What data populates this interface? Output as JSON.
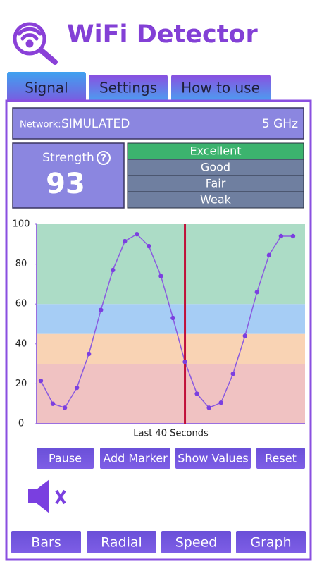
{
  "header": {
    "title": "WiFi Detector"
  },
  "tabs": [
    "Signal",
    "Settings",
    "How to use"
  ],
  "network": {
    "label": "Network:",
    "name": "SIMULATED",
    "band": "5 GHz"
  },
  "strength": {
    "label": "Strength",
    "value": 93
  },
  "levels": [
    "Excellent",
    "Good",
    "Fair",
    "Weak"
  ],
  "chart_data": {
    "type": "line",
    "values": [
      21.5,
      10,
      8,
      18,
      35,
      57,
      77,
      91.5,
      95,
      89,
      74,
      53,
      31,
      15,
      8,
      10.5,
      25,
      44,
      66,
      84.5,
      94,
      94
    ],
    "color": "#8a5ae0",
    "xlim": [
      -0.35,
      22
    ],
    "ylim": [
      0,
      100
    ],
    "yticks": [
      0,
      20,
      40,
      60,
      80,
      100
    ],
    "xlabel": "Last 40 Seconds",
    "marker": 12,
    "marker_color": "#c0103a",
    "bands": [
      {
        "from": 0,
        "to": 30,
        "color": "#f0c2c2"
      },
      {
        "from": 30,
        "to": 45,
        "color": "#f9d3b4"
      },
      {
        "from": 45,
        "to": 60,
        "color": "#a6cdf5"
      },
      {
        "from": 60,
        "to": 100,
        "color": "#acdcc6"
      }
    ]
  },
  "controls": [
    "Pause",
    "Add Marker",
    "Show Values",
    "Reset"
  ],
  "nav": [
    "Bars",
    "Radial",
    "Speed",
    "Graph"
  ]
}
